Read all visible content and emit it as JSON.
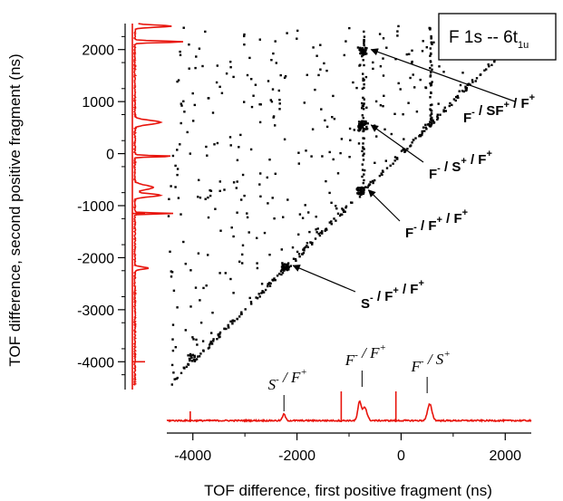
{
  "chart_data": {
    "type": "scatter",
    "title": "",
    "box_label": {
      "main": "F 1s -- 6t",
      "sub": "1u"
    },
    "xlabel": "TOF difference, first positive fragment (ns)",
    "ylabel": "TOF difference, second positive fragment (ns)",
    "xlim": [
      -4500,
      2500
    ],
    "ylim": [
      -4500,
      2500
    ],
    "x_ticks": [
      -4000,
      -2000,
      0,
      2000
    ],
    "x_tick_labels": [
      "-4000",
      "-2000",
      "0",
      "2000"
    ],
    "y_ticks": [
      -4000,
      -3000,
      -2000,
      -1000,
      0,
      1000,
      2000
    ],
    "y_tick_labels": [
      "-4000",
      "-3000",
      "-2000",
      "-1000",
      "0",
      "1000",
      "2000"
    ],
    "colors": {
      "projection": "#e8140c",
      "points": "#000000"
    },
    "clusters": [
      {
        "x": -750,
        "y": 2000
      },
      {
        "x": -750,
        "y": 550
      },
      {
        "x": -800,
        "y": -700
      },
      {
        "x": -2250,
        "y": -2150
      },
      {
        "x": -4050,
        "y": -3900
      }
    ],
    "annotations": [
      {
        "parts": [
          [
            "F",
            "-"
          ],
          [
            " / SF",
            "+"
          ],
          [
            " / F",
            "+"
          ]
        ],
        "target": {
          "x": -750,
          "y": 2000
        }
      },
      {
        "parts": [
          [
            "F",
            "-"
          ],
          [
            " / S",
            "+"
          ],
          [
            " / F",
            "+"
          ]
        ],
        "target": {
          "x": -750,
          "y": 550
        }
      },
      {
        "parts": [
          [
            "F",
            "-"
          ],
          [
            " / F",
            "+"
          ],
          [
            " / F",
            "+"
          ]
        ],
        "target": {
          "x": -800,
          "y": -700
        }
      },
      {
        "parts": [
          [
            "S",
            "-"
          ],
          [
            " / F",
            "+"
          ],
          [
            " / F",
            "+"
          ]
        ],
        "target": {
          "x": -2250,
          "y": -2150
        }
      }
    ],
    "x_projection_peaks": [
      {
        "parts": [
          [
            "S",
            "-"
          ],
          [
            " / F",
            "+"
          ]
        ],
        "x": -2250
      },
      {
        "parts": [
          [
            "F",
            "-"
          ],
          [
            " / F",
            "+"
          ]
        ],
        "x": -750
      },
      {
        "parts": [
          [
            "F",
            "-"
          ],
          [
            " / S",
            "+"
          ]
        ],
        "x": 500
      }
    ]
  }
}
